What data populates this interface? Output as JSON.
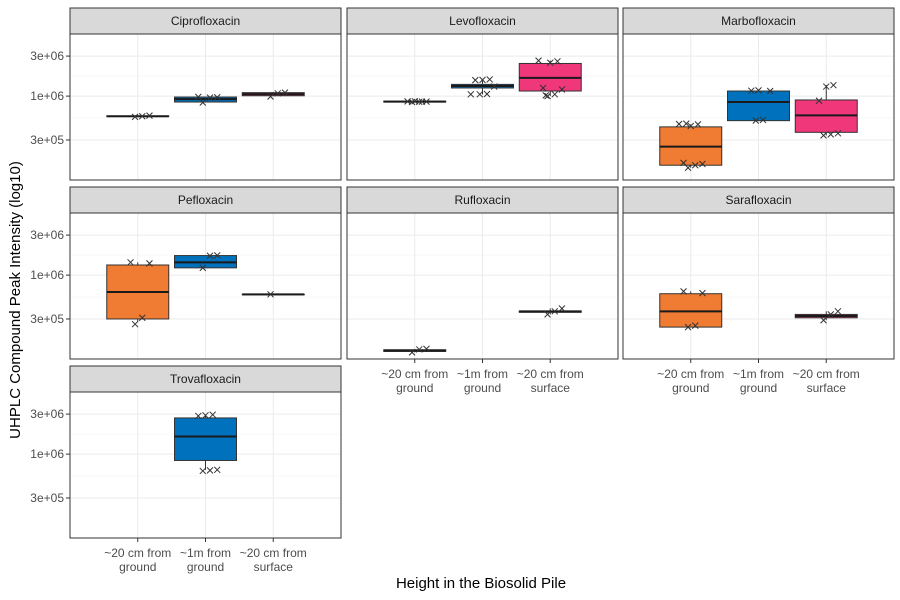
{
  "chart_data": {
    "type": "boxplot",
    "faceted": true,
    "ylabel": "UHPLC Compound Peak Intensity (log10)",
    "xlabel": "Height in the Biosolid Pile",
    "y_scale": "log10",
    "ylim": [
      100000,
      5500000
    ],
    "y_ticks": [
      {
        "value": 300000,
        "label": "3e+05"
      },
      {
        "value": 1000000,
        "label": "1e+06"
      },
      {
        "value": 3000000,
        "label": "3e+06"
      }
    ],
    "categories": [
      "~20 cm from\nground",
      "~1m from\nground",
      "~20 cm from\nsurface"
    ],
    "fill_colors": [
      "#f07b32",
      "#0072bd",
      "#f03779"
    ],
    "panels": [
      {
        "name": "Ciprofloxacin",
        "boxes": [
          {
            "category": 0,
            "q1": 570000,
            "median": 575000,
            "q3": 580000,
            "whisker_low": 570000,
            "whisker_high": 580000,
            "points": [
              565000,
              575000,
              585000
            ]
          },
          {
            "category": 1,
            "q1": 850000,
            "median": 920000,
            "q3": 975000,
            "whisker_low": 850000,
            "whisker_high": 975000,
            "points": [
              840000,
              960000,
              970000,
              980000
            ]
          },
          {
            "category": 2,
            "q1": 1010000,
            "median": 1055000,
            "q3": 1100000,
            "whisker_low": 1000000,
            "whisker_high": 1120000,
            "points": [
              990000,
              1080000,
              1100000
            ]
          }
        ]
      },
      {
        "name": "Levofloxacin",
        "boxes": [
          {
            "category": 0,
            "q1": 850000,
            "median": 860000,
            "q3": 870000,
            "whisker_low": 850000,
            "whisker_high": 870000,
            "points": [
              850000,
              855000,
              860000,
              865000,
              870000,
              860000
            ]
          },
          {
            "category": 1,
            "q1": 1250000,
            "median": 1320000,
            "q3": 1380000,
            "whisker_low": 1050000,
            "whisker_high": 1600000,
            "points": [
              1050000,
              1060000,
              1300000,
              1550000,
              1560000,
              1580000,
              1050000
            ]
          },
          {
            "category": 2,
            "q1": 1150000,
            "median": 1650000,
            "q3": 2450000,
            "whisker_low": 1000000,
            "whisker_high": 2650000,
            "points": [
              1000000,
              1050000,
              1200000,
              1250000,
              2500000,
              2600000,
              2650000,
              1020000
            ]
          }
        ]
      },
      {
        "name": "Marbofloxacin",
        "boxes": [
          {
            "category": 0,
            "q1": 150000,
            "median": 250000,
            "q3": 430000,
            "whisker_low": 140000,
            "whisker_high": 460000,
            "points": [
              140000,
              150000,
              155000,
              160000,
              440000,
              460000,
              465000,
              470000
            ]
          },
          {
            "category": 1,
            "q1": 510000,
            "median": 850000,
            "q3": 1150000,
            "whisker_low": 510000,
            "whisker_high": 1150000,
            "points": [
              510000,
              520000,
              1150000,
              1160000,
              1170000
            ]
          },
          {
            "category": 2,
            "q1": 370000,
            "median": 590000,
            "q3": 900000,
            "whisker_low": 340000,
            "whisker_high": 1350000,
            "points": [
              340000,
              350000,
              360000,
              880000,
              1300000,
              1350000
            ]
          }
        ]
      },
      {
        "name": "Pefloxacin",
        "boxes": [
          {
            "category": 0,
            "q1": 300000,
            "median": 630000,
            "q3": 1320000,
            "whisker_low": 280000,
            "whisker_high": 1420000,
            "points": [
              260000,
              310000,
              1380000,
              1420000
            ]
          },
          {
            "category": 1,
            "q1": 1220000,
            "median": 1420000,
            "q3": 1710000,
            "whisker_low": 1220000,
            "whisker_high": 1710000,
            "points": [
              1220000,
              1700000,
              1720000
            ]
          },
          {
            "category": 2,
            "q1": 590000,
            "median": 590000,
            "q3": 590000,
            "whisker_low": 590000,
            "whisker_high": 590000,
            "points": [
              590000
            ]
          }
        ]
      },
      {
        "name": "Rufloxacin",
        "boxes": [
          {
            "category": 0,
            "q1": 123000,
            "median": 126000,
            "q3": 129000,
            "whisker_low": 120000,
            "whisker_high": 132000,
            "points": [
              120000,
              130000,
              132000
            ]
          },
          {
            "category": 2,
            "q1": 360000,
            "median": 368000,
            "q3": 375000,
            "whisker_low": 340000,
            "whisker_high": 400000,
            "points": [
              340000,
              370000,
              400000
            ]
          }
        ]
      },
      {
        "name": "Sarafloxacin",
        "boxes": [
          {
            "category": 0,
            "q1": 240000,
            "median": 370000,
            "q3": 600000,
            "whisker_low": 240000,
            "whisker_high": 640000,
            "points": [
              240000,
              250000,
              610000,
              640000
            ]
          },
          {
            "category": 2,
            "q1": 310000,
            "median": 325000,
            "q3": 340000,
            "whisker_low": 290000,
            "whisker_high": 370000,
            "points": [
              290000,
              340000,
              370000
            ]
          }
        ]
      },
      {
        "name": "Trovafloxacin",
        "boxes": [
          {
            "category": 1,
            "q1": 840000,
            "median": 1620000,
            "q3": 2700000,
            "whisker_low": 650000,
            "whisker_high": 2900000,
            "points": [
              630000,
              640000,
              650000,
              2850000,
              2900000,
              2950000
            ]
          }
        ]
      }
    ]
  }
}
